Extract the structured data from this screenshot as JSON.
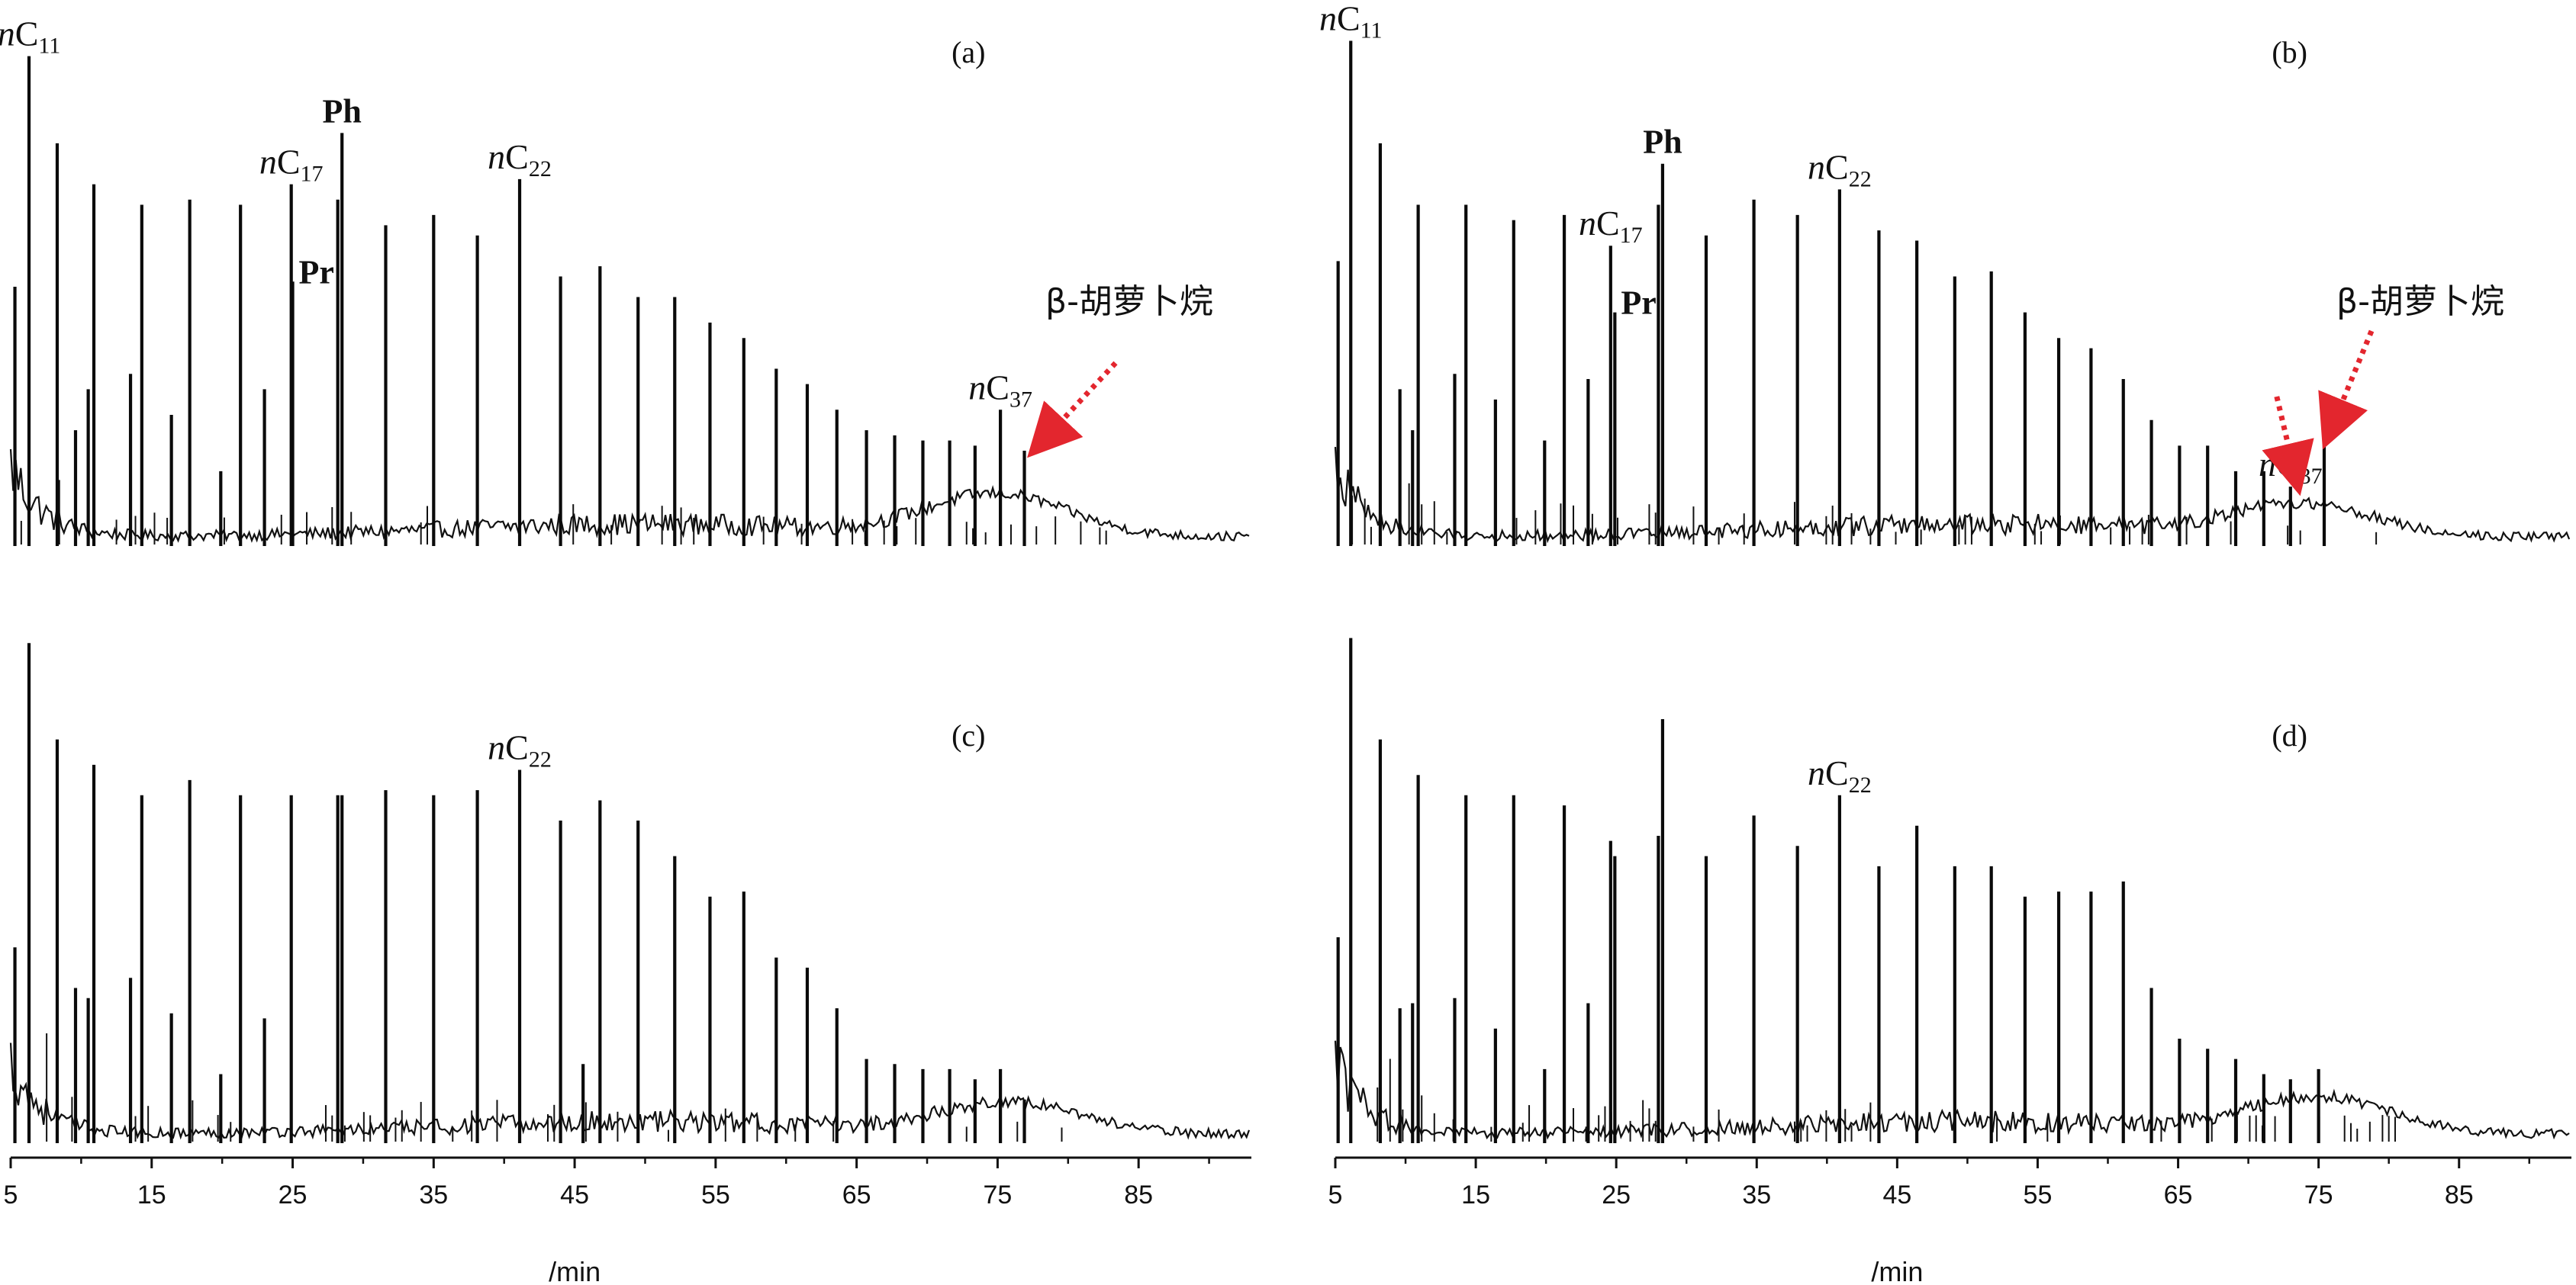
{
  "chart_data": [
    {
      "type": "line",
      "panel": "(a)",
      "xlabel": "/min",
      "xlim": [
        5,
        93
      ],
      "x_ticks": [
        5,
        15,
        25,
        35,
        45,
        55,
        65,
        75,
        85
      ],
      "baseline_bump": {
        "center": 75,
        "width": 7,
        "height": 0.08
      },
      "peaks": [
        {
          "x": 5.3,
          "h": 0.5
        },
        {
          "x": 6.3,
          "h": 0.95,
          "label": "nC11"
        },
        {
          "x": 8.3,
          "h": 0.78
        },
        {
          "x": 9.6,
          "h": 0.22
        },
        {
          "x": 10.5,
          "h": 0.3
        },
        {
          "x": 10.9,
          "h": 0.7
        },
        {
          "x": 13.5,
          "h": 0.33
        },
        {
          "x": 14.3,
          "h": 0.66
        },
        {
          "x": 16.4,
          "h": 0.25
        },
        {
          "x": 17.7,
          "h": 0.67
        },
        {
          "x": 19.9,
          "h": 0.14
        },
        {
          "x": 21.3,
          "h": 0.66
        },
        {
          "x": 23.0,
          "h": 0.3
        },
        {
          "x": 24.9,
          "h": 0.7,
          "label": "nC17"
        },
        {
          "x": 25.0,
          "h": 0.51,
          "label": "Pr"
        },
        {
          "x": 28.2,
          "h": 0.67
        },
        {
          "x": 28.5,
          "h": 0.8,
          "label": "Ph"
        },
        {
          "x": 31.6,
          "h": 0.62
        },
        {
          "x": 35.0,
          "h": 0.64
        },
        {
          "x": 38.1,
          "h": 0.6
        },
        {
          "x": 41.1,
          "h": 0.71,
          "label": "nC22"
        },
        {
          "x": 44.0,
          "h": 0.52
        },
        {
          "x": 46.8,
          "h": 0.54
        },
        {
          "x": 49.5,
          "h": 0.48
        },
        {
          "x": 52.1,
          "h": 0.48
        },
        {
          "x": 54.6,
          "h": 0.43
        },
        {
          "x": 57.0,
          "h": 0.4
        },
        {
          "x": 59.3,
          "h": 0.34
        },
        {
          "x": 61.5,
          "h": 0.31
        },
        {
          "x": 63.6,
          "h": 0.26
        },
        {
          "x": 65.7,
          "h": 0.22
        },
        {
          "x": 67.7,
          "h": 0.21
        },
        {
          "x": 69.7,
          "h": 0.2
        },
        {
          "x": 71.6,
          "h": 0.2
        },
        {
          "x": 73.4,
          "h": 0.19
        },
        {
          "x": 75.2,
          "h": 0.26,
          "label": "nC37"
        },
        {
          "x": 76.9,
          "h": 0.18
        }
      ],
      "peak_labels": [
        {
          "text": "nC11",
          "x": 6.3
        },
        {
          "text": "Ph",
          "x": 28.5
        },
        {
          "text": "nC17",
          "x": 24.9
        },
        {
          "text": "Pr",
          "x": 25.0
        },
        {
          "text": "nC22",
          "x": 41.1
        },
        {
          "text": "nC37",
          "x": 75.2
        }
      ],
      "annotation": {
        "text": "β-胡萝卜烷",
        "target_x": 77.0
      }
    },
    {
      "type": "line",
      "panel": "(b)",
      "xlabel": "/min",
      "xlim": [
        5,
        93
      ],
      "x_ticks": [
        5,
        15,
        25,
        35,
        45,
        55,
        65,
        75,
        85
      ],
      "baseline_bump": {
        "center": 74,
        "width": 7,
        "height": 0.06
      },
      "peaks": [
        {
          "x": 5.2,
          "h": 0.55
        },
        {
          "x": 6.1,
          "h": 0.98,
          "label": "nC11"
        },
        {
          "x": 8.2,
          "h": 0.78
        },
        {
          "x": 9.6,
          "h": 0.3
        },
        {
          "x": 10.5,
          "h": 0.22
        },
        {
          "x": 10.9,
          "h": 0.66
        },
        {
          "x": 13.5,
          "h": 0.33
        },
        {
          "x": 14.3,
          "h": 0.66
        },
        {
          "x": 16.4,
          "h": 0.28
        },
        {
          "x": 17.7,
          "h": 0.63
        },
        {
          "x": 19.9,
          "h": 0.2
        },
        {
          "x": 21.3,
          "h": 0.64
        },
        {
          "x": 23.0,
          "h": 0.32
        },
        {
          "x": 24.6,
          "h": 0.58,
          "label": "nC17"
        },
        {
          "x": 24.9,
          "h": 0.45,
          "label": "Pr"
        },
        {
          "x": 28.0,
          "h": 0.66
        },
        {
          "x": 28.3,
          "h": 0.74,
          "label": "Ph"
        },
        {
          "x": 31.4,
          "h": 0.6
        },
        {
          "x": 34.8,
          "h": 0.67
        },
        {
          "x": 37.9,
          "h": 0.64
        },
        {
          "x": 40.9,
          "h": 0.69,
          "label": "nC22"
        },
        {
          "x": 43.7,
          "h": 0.61
        },
        {
          "x": 46.4,
          "h": 0.59
        },
        {
          "x": 49.1,
          "h": 0.52
        },
        {
          "x": 51.7,
          "h": 0.53
        },
        {
          "x": 54.1,
          "h": 0.45
        },
        {
          "x": 56.5,
          "h": 0.4
        },
        {
          "x": 58.8,
          "h": 0.38
        },
        {
          "x": 61.1,
          "h": 0.32
        },
        {
          "x": 63.1,
          "h": 0.24
        },
        {
          "x": 65.1,
          "h": 0.19
        },
        {
          "x": 67.1,
          "h": 0.19
        },
        {
          "x": 69.1,
          "h": 0.14
        },
        {
          "x": 71.1,
          "h": 0.14
        },
        {
          "x": 73.0,
          "h": 0.11,
          "label": "nC37"
        },
        {
          "x": 75.4,
          "h": 0.22
        }
      ],
      "peak_labels": [
        {
          "text": "nC11",
          "x": 6.1
        },
        {
          "text": "Ph",
          "x": 28.3
        },
        {
          "text": "nC17",
          "x": 24.6
        },
        {
          "text": "Pr",
          "x": 24.9
        },
        {
          "text": "nC22",
          "x": 40.9
        },
        {
          "text": "nC37",
          "x": 73.0
        }
      ],
      "annotation": {
        "text": "β-胡萝卜烷",
        "target_x": 75.4
      }
    },
    {
      "type": "line",
      "panel": "(c)",
      "xlabel": "/min",
      "xlim": [
        5,
        93
      ],
      "x_ticks": [
        5,
        15,
        25,
        35,
        45,
        55,
        65,
        75,
        85
      ],
      "baseline_bump": {
        "center": 76,
        "width": 7,
        "height": 0.06
      },
      "peaks": [
        {
          "x": 5.3,
          "h": 0.38
        },
        {
          "x": 6.3,
          "h": 0.98
        },
        {
          "x": 8.3,
          "h": 0.79
        },
        {
          "x": 9.6,
          "h": 0.3
        },
        {
          "x": 10.5,
          "h": 0.28
        },
        {
          "x": 10.9,
          "h": 0.74
        },
        {
          "x": 13.5,
          "h": 0.32
        },
        {
          "x": 14.3,
          "h": 0.68
        },
        {
          "x": 16.4,
          "h": 0.25
        },
        {
          "x": 17.7,
          "h": 0.71
        },
        {
          "x": 19.9,
          "h": 0.13
        },
        {
          "x": 21.3,
          "h": 0.68
        },
        {
          "x": 23.0,
          "h": 0.24
        },
        {
          "x": 24.9,
          "h": 0.68
        },
        {
          "x": 28.2,
          "h": 0.68
        },
        {
          "x": 28.5,
          "h": 0.68
        },
        {
          "x": 31.6,
          "h": 0.69
        },
        {
          "x": 35.0,
          "h": 0.68
        },
        {
          "x": 38.1,
          "h": 0.69
        },
        {
          "x": 41.1,
          "h": 0.73,
          "label": "nC22"
        },
        {
          "x": 44.0,
          "h": 0.63
        },
        {
          "x": 45.6,
          "h": 0.15
        },
        {
          "x": 46.8,
          "h": 0.67
        },
        {
          "x": 49.5,
          "h": 0.63
        },
        {
          "x": 52.1,
          "h": 0.56
        },
        {
          "x": 54.6,
          "h": 0.48
        },
        {
          "x": 57.0,
          "h": 0.49
        },
        {
          "x": 59.3,
          "h": 0.36
        },
        {
          "x": 61.5,
          "h": 0.34
        },
        {
          "x": 63.6,
          "h": 0.26
        },
        {
          "x": 65.7,
          "h": 0.16
        },
        {
          "x": 67.7,
          "h": 0.15
        },
        {
          "x": 69.7,
          "h": 0.14
        },
        {
          "x": 71.6,
          "h": 0.14
        },
        {
          "x": 73.4,
          "h": 0.12
        },
        {
          "x": 75.2,
          "h": 0.14
        },
        {
          "x": 76.9,
          "h": 0.08
        }
      ],
      "peak_labels": [
        {
          "text": "nC22",
          "x": 41.1
        }
      ]
    },
    {
      "type": "line",
      "panel": "(d)",
      "xlabel": "/min",
      "xlim": [
        5,
        93
      ],
      "x_ticks": [
        5,
        15,
        25,
        35,
        45,
        55,
        65,
        75,
        85
      ],
      "baseline_bump": {
        "center": 75,
        "width": 7,
        "height": 0.07
      },
      "peaks": [
        {
          "x": 5.2,
          "h": 0.4
        },
        {
          "x": 6.1,
          "h": 0.99
        },
        {
          "x": 8.2,
          "h": 0.79
        },
        {
          "x": 9.6,
          "h": 0.26
        },
        {
          "x": 10.5,
          "h": 0.27
        },
        {
          "x": 10.9,
          "h": 0.72
        },
        {
          "x": 13.5,
          "h": 0.28
        },
        {
          "x": 14.3,
          "h": 0.68
        },
        {
          "x": 16.4,
          "h": 0.22
        },
        {
          "x": 17.7,
          "h": 0.68
        },
        {
          "x": 19.9,
          "h": 0.14
        },
        {
          "x": 21.3,
          "h": 0.66
        },
        {
          "x": 23.0,
          "h": 0.27
        },
        {
          "x": 24.6,
          "h": 0.59
        },
        {
          "x": 24.9,
          "h": 0.56
        },
        {
          "x": 28.0,
          "h": 0.6
        },
        {
          "x": 28.3,
          "h": 0.83
        },
        {
          "x": 31.4,
          "h": 0.56
        },
        {
          "x": 34.8,
          "h": 0.64
        },
        {
          "x": 37.9,
          "h": 0.58
        },
        {
          "x": 40.9,
          "h": 0.68,
          "label": "nC22"
        },
        {
          "x": 43.7,
          "h": 0.54
        },
        {
          "x": 46.4,
          "h": 0.62
        },
        {
          "x": 49.1,
          "h": 0.54
        },
        {
          "x": 51.7,
          "h": 0.54
        },
        {
          "x": 54.1,
          "h": 0.48
        },
        {
          "x": 56.5,
          "h": 0.49
        },
        {
          "x": 58.8,
          "h": 0.49
        },
        {
          "x": 61.1,
          "h": 0.51
        },
        {
          "x": 63.1,
          "h": 0.3
        },
        {
          "x": 65.1,
          "h": 0.2
        },
        {
          "x": 67.1,
          "h": 0.18
        },
        {
          "x": 69.1,
          "h": 0.16
        },
        {
          "x": 71.1,
          "h": 0.13
        },
        {
          "x": 73.0,
          "h": 0.12
        },
        {
          "x": 75.0,
          "h": 0.14
        }
      ],
      "peak_labels": [
        {
          "text": "nC22",
          "x": 40.9
        }
      ]
    }
  ]
}
